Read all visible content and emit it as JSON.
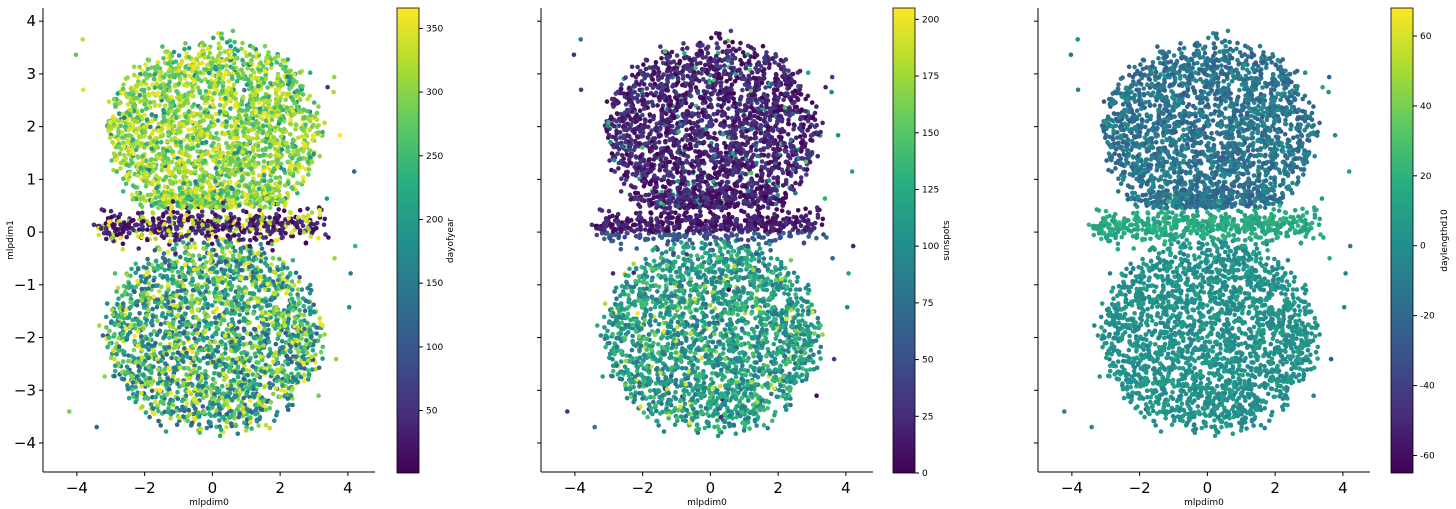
{
  "chart_data": [
    {
      "type": "scatter",
      "xlabel": "mlpdim0",
      "ylabel": "mlpdim1",
      "xlim": [
        -5,
        4.8
      ],
      "ylim": [
        -4.55,
        4.25
      ],
      "xticks": [
        "−4",
        "−2",
        "0",
        "2",
        "4"
      ],
      "yticks": [
        "−4",
        "−3",
        "−2",
        "−1",
        "0",
        "1",
        "2",
        "3",
        "4"
      ],
      "color_variable": "dayofyear",
      "colorbar": {
        "label": "dayofyear",
        "range": [
          1,
          366
        ],
        "ticks": [
          "50",
          "100",
          "150",
          "200",
          "250",
          "300",
          "350"
        ]
      },
      "colormap": "viridis",
      "points": "~10000 points forming two stacked lobes: upper lobe (y≈0.4 to 3.9) mostly 250–366, thin band near y≈0 mostly low values (1–60), lower lobe (y≈-0.5 to -4) mixed, 100–366"
    },
    {
      "type": "scatter",
      "xlabel": "mlpdim0",
      "ylabel": "",
      "xlim": [
        -5,
        4.8
      ],
      "ylim": [
        -4.55,
        4.25
      ],
      "xticks": [
        "−4",
        "−2",
        "0",
        "2",
        "4"
      ],
      "color_variable": "sunspots",
      "colorbar": {
        "label": "sunspots",
        "range": [
          0,
          205
        ],
        "ticks": [
          "0",
          "25",
          "50",
          "75",
          "100",
          "125",
          "150",
          "175",
          "200"
        ]
      },
      "colormap": "viridis",
      "points": "same layout; upper lobe mostly 0–40, lower lobe mostly 80–140 with scattered high values up to 200"
    },
    {
      "type": "scatter",
      "xlabel": "mlpdim0",
      "ylabel": "",
      "xlim": [
        -5,
        4.8
      ],
      "ylim": [
        -4.55,
        4.25
      ],
      "xticks": [
        "−4",
        "−2",
        "0",
        "2",
        "4"
      ],
      "color_variable": "daylengthd10",
      "colorbar": {
        "label": "daylengthd10",
        "range": [
          -65,
          68
        ],
        "ticks": [
          "-60",
          "-40",
          "-20",
          "0",
          "20",
          "40",
          "60"
        ]
      },
      "colormap": "viridis",
      "points": "same layout; upper lobe mostly -25 to 0, band near y≈0.4 about 10–20, lower lobe mostly -5 to 10"
    }
  ]
}
